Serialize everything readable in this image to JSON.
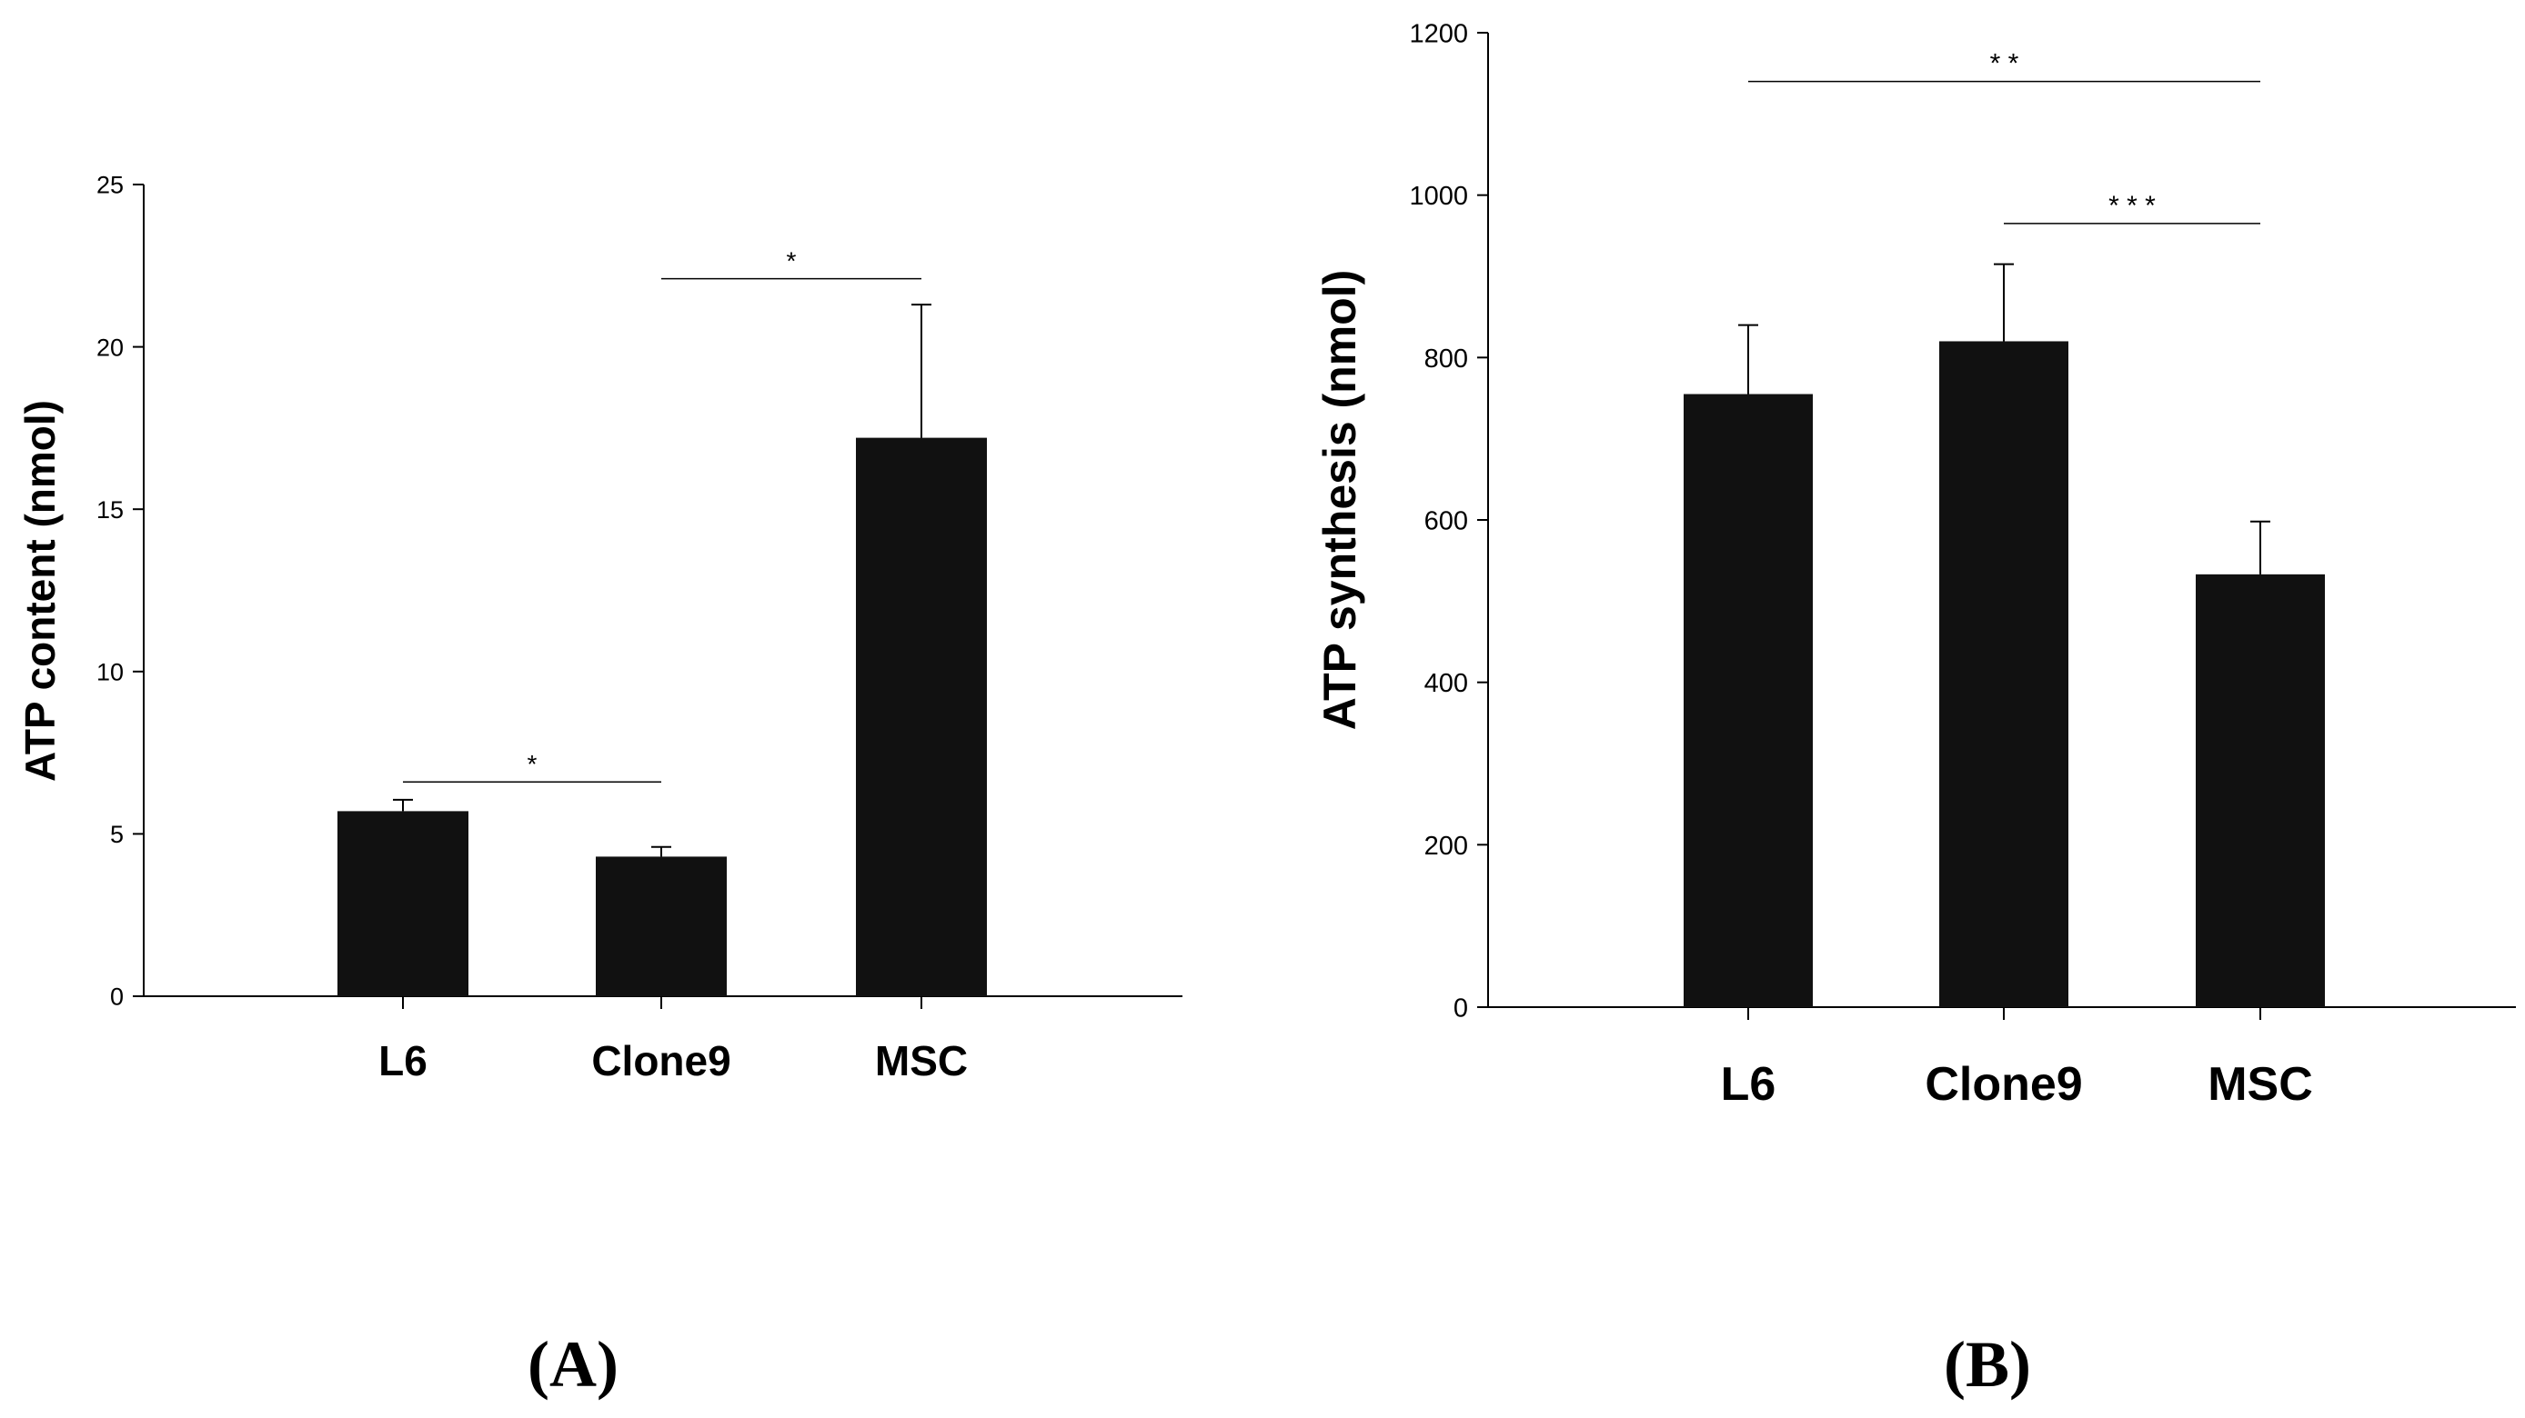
{
  "chart_data": [
    {
      "type": "bar",
      "panel_label": "(A)",
      "categories": [
        "L6",
        "Clone9",
        "MSC"
      ],
      "values": [
        5.7,
        4.3,
        17.2
      ],
      "errors": [
        0.35,
        0.3,
        4.1
      ],
      "ylabel": "ATP content (nmol)",
      "xlabel": "",
      "ylim": [
        0,
        25
      ],
      "yticks": [
        0,
        5,
        10,
        15,
        20,
        25
      ],
      "bar_color": "#111111",
      "significance": [
        {
          "from": 0,
          "to": 1,
          "value": 6.6,
          "label": "*"
        },
        {
          "from": 1,
          "to": 2,
          "value": 22.1,
          "label": "*"
        }
      ]
    },
    {
      "type": "bar",
      "panel_label": "(B)",
      "categories": [
        "L6",
        "Clone9",
        "MSC"
      ],
      "values": [
        755,
        820,
        533
      ],
      "errors": [
        85,
        95,
        65
      ],
      "ylabel": "ATP synthesis (nmol)",
      "xlabel": "",
      "ylim": [
        0,
        1200
      ],
      "yticks": [
        0,
        200,
        400,
        600,
        800,
        1000,
        1200
      ],
      "bar_color": "#111111",
      "significance": [
        {
          "from": 0,
          "to": 2,
          "value": 1140,
          "label": "* *"
        },
        {
          "from": 1,
          "to": 2,
          "value": 965,
          "label": "* * *"
        }
      ]
    }
  ]
}
